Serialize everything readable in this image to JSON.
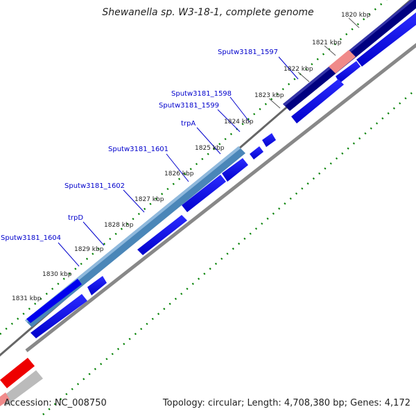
{
  "header": {
    "title": "Shewanella sp. W3-18-1, complete genome"
  },
  "footer": {
    "accession": "Accession: NC_008750",
    "summary": "Topology: circular; Length: 4,708,380 bp; Genes: 4,172"
  },
  "ticks": [
    "1820 kbp",
    "1821 kbp",
    "1822 kbp",
    "1823 kbp",
    "1824 kbp",
    "1825 kbp",
    "1826 kbp",
    "1827 kbp",
    "1828 kbp",
    "1829 kbp",
    "1830 kbp",
    "1831 kbp"
  ],
  "genes": [
    "Sputw3181_1597",
    "Sputw3181_1598",
    "Sputw3181_1599",
    "trpA",
    "Sputw3181_1601",
    "Sputw3181_1602",
    "trpD",
    "Sputw3181_1604"
  ],
  "colors": {
    "gene_label": "#0000cc",
    "cds": "#0000ee",
    "operon_blue": "#4a86b8",
    "navy": "#000080",
    "pink": "#f08a8a",
    "red": "#ee0000",
    "gray_track": "#888888",
    "dotted_green": "#008000"
  }
}
